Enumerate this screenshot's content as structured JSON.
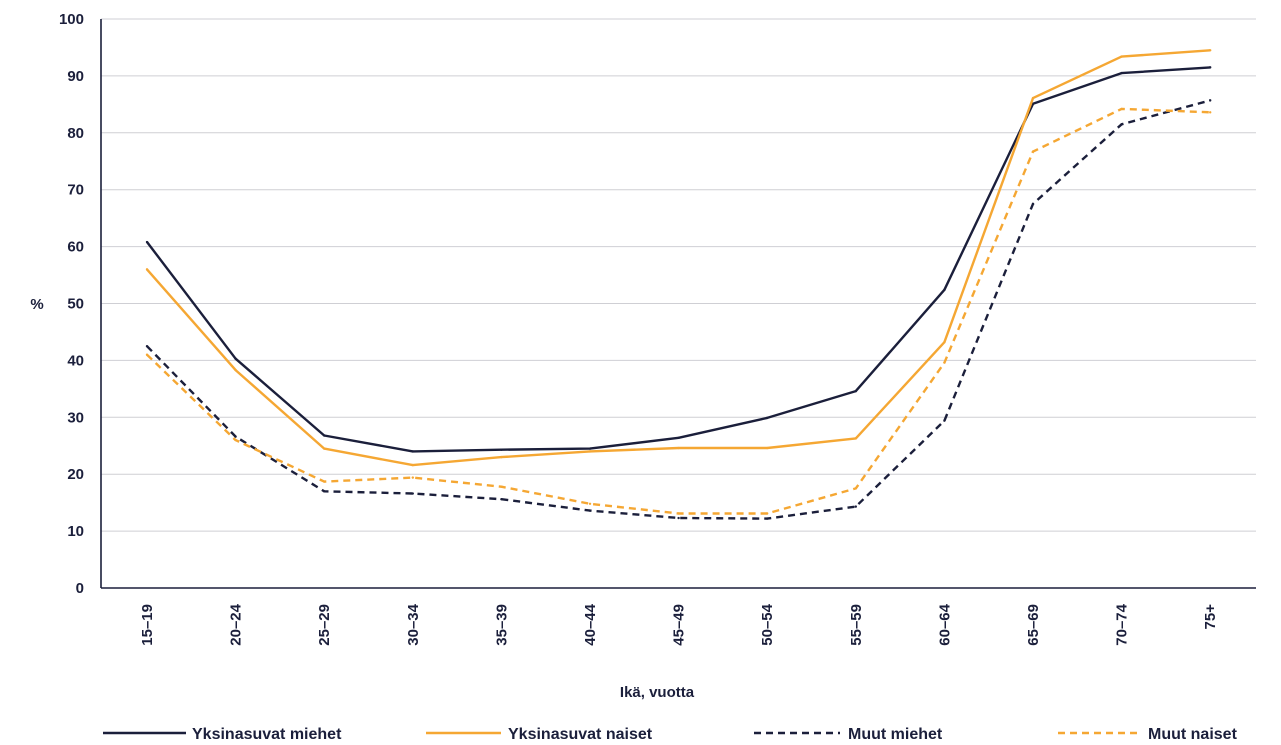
{
  "chart_data": {
    "type": "line",
    "title": "",
    "xlabel": "Ikä, vuotta",
    "ylabel": "%",
    "ylim": [
      0,
      100
    ],
    "yticks": [
      0,
      10,
      20,
      30,
      40,
      50,
      60,
      70,
      80,
      90,
      100
    ],
    "grid": true,
    "legend_position": "bottom",
    "categories": [
      "15–19",
      "20–24",
      "25–29",
      "30–34",
      "35–39",
      "40–44",
      "45–49",
      "50–54",
      "55–59",
      "60–64",
      "65–69",
      "70–74",
      "75+"
    ],
    "series": [
      {
        "name": "Yksinasuvat miehet",
        "color": "#1b1f3b",
        "dash": "solid",
        "values": [
          60.8,
          40.3,
          26.8,
          24.0,
          24.3,
          24.5,
          26.4,
          29.9,
          34.6,
          52.4,
          85.1,
          90.5,
          91.5
        ]
      },
      {
        "name": "Yksinasuvat naiset",
        "color": "#f5a733",
        "dash": "solid",
        "values": [
          56.0,
          38.3,
          24.5,
          21.6,
          23.0,
          24.0,
          24.6,
          24.6,
          26.3,
          43.2,
          86.1,
          93.4,
          94.5
        ]
      },
      {
        "name": "Muut miehet",
        "color": "#1b1f3b",
        "dash": "dashed",
        "values": [
          42.5,
          26.6,
          17.0,
          16.6,
          15.6,
          13.6,
          12.3,
          12.2,
          14.3,
          29.4,
          67.5,
          81.5,
          85.7
        ]
      },
      {
        "name": "Muut naiset",
        "color": "#f5a733",
        "dash": "dashed",
        "values": [
          41.0,
          26.0,
          18.7,
          19.4,
          17.8,
          14.8,
          13.1,
          13.1,
          17.5,
          39.6,
          76.7,
          84.2,
          83.6
        ]
      }
    ]
  }
}
